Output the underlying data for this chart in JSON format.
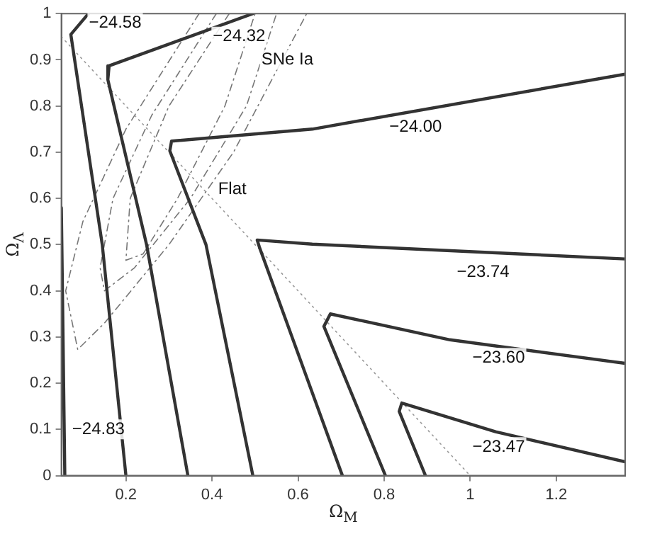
{
  "chart_data": {
    "type": "line",
    "xlabel": "Ω$_{M}$",
    "ylabel": "Ω$_{Λ}$",
    "xlim": [
      0.05,
      1.36
    ],
    "ylim": [
      0,
      1
    ],
    "xticks": [
      0.2,
      0.4,
      0.6,
      0.8,
      1,
      1.2
    ],
    "yticks": [
      0,
      0.1,
      0.2,
      0.3,
      0.4,
      0.5,
      0.6,
      0.7,
      0.8,
      0.9,
      1
    ],
    "grid": false,
    "legend": false,
    "marker": "none",
    "series": [
      {
        "color": "#333333",
        "line_style": "solid",
        "x": [
          0.05,
          0.058
        ],
        "values": [
          0.58,
          0
        ]
      },
      {
        "color": "#333333",
        "line_style": "solid",
        "x": [
          0.113,
          0.072,
          0.145,
          0.2
        ],
        "values": [
          1,
          0.955,
          0.5,
          0
        ]
      },
      {
        "color": "#333333",
        "line_style": "solid",
        "x": [
          0.495,
          0.161,
          0.158,
          0.248,
          0.344
        ],
        "values": [
          1,
          0.887,
          0.857,
          0.5,
          0
        ]
      },
      {
        "color": "#333333",
        "line_style": "solid",
        "x": [
          1.36,
          0.633,
          0.306,
          0.302,
          0.386,
          0.495
        ],
        "values": [
          0.869,
          0.75,
          0.724,
          0.703,
          0.5,
          0
        ]
      },
      {
        "color": "#333333",
        "line_style": "solid",
        "x": [
          1.36,
          0.633,
          0.505,
          0.51,
          0.703
        ],
        "values": [
          0.469,
          0.501,
          0.51,
          0.495,
          0
        ]
      },
      {
        "color": "#333333",
        "line_style": "solid",
        "x": [
          1.36,
          0.953,
          0.675,
          0.66,
          0.803
        ],
        "values": [
          0.243,
          0.294,
          0.35,
          0.323,
          0
        ]
      },
      {
        "color": "#333333",
        "line_style": "solid",
        "x": [
          1.36,
          1.059,
          0.841,
          0.835,
          0.896
        ],
        "values": [
          0.03,
          0.095,
          0.157,
          0.139,
          0
        ]
      },
      {
        "color": "#999999",
        "line_style": "dotted",
        "x": [
          0.05,
          1
        ],
        "values": [
          0.95,
          0
        ]
      },
      {
        "color": "#777777",
        "line_style": "dashed",
        "x": [
          0.37,
          0.2,
          0.1,
          0.06,
          0.088,
          0.15,
          0.3,
          0.45,
          0.62
        ],
        "values": [
          1,
          0.75,
          0.55,
          0.4,
          0.273,
          0.33,
          0.5,
          0.7,
          1
        ]
      },
      {
        "color": "#777777",
        "line_style": "dashed",
        "x": [
          0.41,
          0.26,
          0.17,
          0.14,
          0.15,
          0.22,
          0.35,
          0.48,
          0.55
        ],
        "values": [
          1,
          0.78,
          0.6,
          0.45,
          0.4,
          0.45,
          0.6,
          0.8,
          1
        ]
      },
      {
        "color": "#777777",
        "line_style": "dashed",
        "x": [
          0.44,
          0.3,
          0.21,
          0.2,
          0.24,
          0.32,
          0.43,
          0.5
        ],
        "values": [
          1,
          0.8,
          0.6,
          0.466,
          0.48,
          0.6,
          0.8,
          1
        ]
      }
    ],
    "annotations": [
      {
        "text": "−24.83",
        "x": 0.136,
        "y": 0.1
      },
      {
        "text": "−24.58",
        "x": 0.175,
        "y": 0.98
      },
      {
        "text": "−24.32",
        "x": 0.463,
        "y": 0.95
      },
      {
        "text": "−24.00",
        "x": 0.873,
        "y": 0.754
      },
      {
        "text": "−23.74",
        "x": 1.03,
        "y": 0.44
      },
      {
        "text": "−23.60",
        "x": 1.066,
        "y": 0.255
      },
      {
        "text": "−23.47",
        "x": 1.066,
        "y": 0.062
      },
      {
        "text": "Flat",
        "x": 0.447,
        "y": 0.62
      },
      {
        "text": "SNe Ia",
        "x": 0.575,
        "y": 0.9
      }
    ]
  }
}
